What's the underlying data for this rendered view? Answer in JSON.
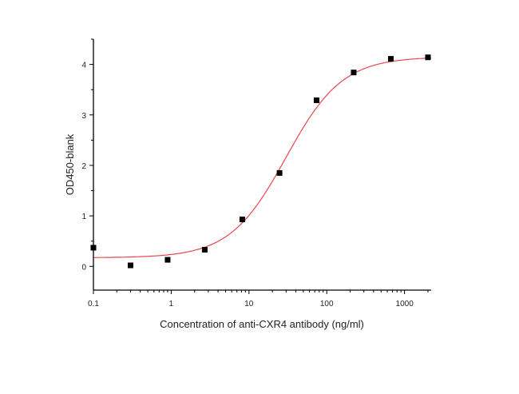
{
  "chart_data": {
    "type": "scatter",
    "title": "",
    "xlabel": "Concentration of anti-CXR4 antibody (ng/ml)",
    "ylabel": "OD450-blank",
    "xscale": "log",
    "xlim": [
      0.1,
      2200
    ],
    "ylim": [
      -0.47,
      4.5
    ],
    "xticks": [
      0.1,
      1,
      10,
      100,
      1000
    ],
    "xtick_labels": [
      "0.1",
      "1",
      "10",
      "100",
      "1000"
    ],
    "yticks": [
      0,
      1,
      2,
      3,
      4
    ],
    "ytick_labels": [
      "0",
      "1",
      "2",
      "3",
      "4"
    ],
    "grid": false,
    "legend": "none",
    "series": [
      {
        "type": "scatter",
        "marker": "square",
        "color": "#000000",
        "x": [
          0.1,
          0.3,
          0.9,
          2.7,
          8.2,
          24.7,
          74,
          222,
          667,
          2000
        ],
        "y": [
          0.37,
          0.02,
          0.13,
          0.33,
          0.93,
          1.85,
          3.29,
          3.84,
          4.11,
          4.14
        ]
      },
      {
        "type": "line",
        "fit": "4PL",
        "color": "#e8474f",
        "bottom": 0.17,
        "top": 4.15,
        "ec50": 30,
        "hill": 1.2
      }
    ]
  }
}
